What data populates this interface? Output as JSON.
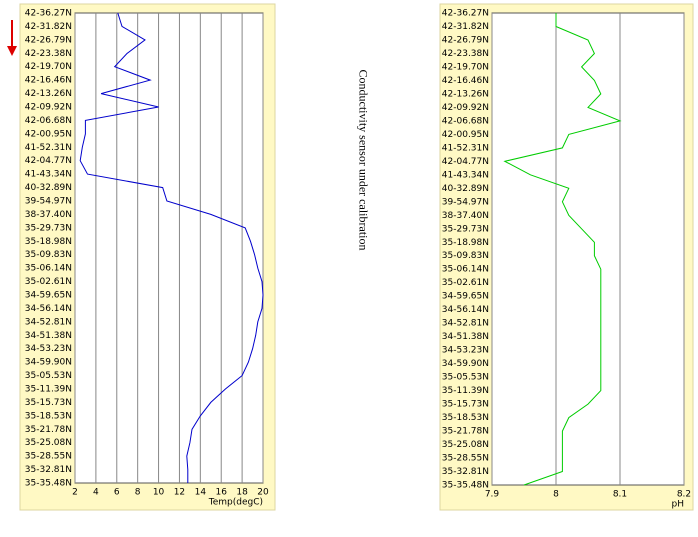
{
  "note": "Conductivity sensor under calibration",
  "chart_data": [
    {
      "type": "line",
      "categories": [
        "42-36.27N",
        "42-31.82N",
        "42-26.79N",
        "42-23.38N",
        "42-19.70N",
        "42-16.46N",
        "42-13.26N",
        "42-09.92N",
        "42-06.68N",
        "42-00.95N",
        "41-52.31N",
        "42-04.77N",
        "41-43.34N",
        "40-32.89N",
        "39-54.97N",
        "38-37.40N",
        "35-29.73N",
        "35-18.98N",
        "35-09.83N",
        "35-06.14N",
        "35-02.61N",
        "34-59.65N",
        "34-56.14N",
        "34-52.81N",
        "34-51.38N",
        "34-53.23N",
        "34-59.90N",
        "35-05.53N",
        "35-11.39N",
        "35-15.73N",
        "35-18.53N",
        "35-21.78N",
        "35-25.08N",
        "35-28.55N",
        "35-32.81N",
        "35-35.48N"
      ],
      "series": [
        {
          "name": "Temp",
          "color": "#0000cc",
          "values": [
            6.1,
            6.5,
            8.7,
            7,
            5.8,
            9.2,
            4.5,
            10,
            3,
            3,
            2.7,
            2.5,
            3.2,
            10.4,
            10.8,
            15,
            18.3,
            18.8,
            19.2,
            19.5,
            19.9,
            20,
            19.9,
            19.5,
            19.3,
            19,
            18.6,
            18,
            16.4,
            15,
            14,
            13.2,
            13,
            12.7,
            12.8,
            12.8
          ]
        }
      ],
      "xlabel": "Temp(degC)",
      "xlim": [
        2,
        20
      ],
      "xticks": [
        2,
        4,
        6,
        8,
        10,
        12,
        14,
        16,
        18,
        20
      ],
      "grid": true
    },
    {
      "type": "line",
      "categories": [
        "42-36.27N",
        "42-31.82N",
        "42-26.79N",
        "42-23.38N",
        "42-19.70N",
        "42-16.46N",
        "42-13.26N",
        "42-09.92N",
        "42-06.68N",
        "42-00.95N",
        "41-52.31N",
        "42-04.77N",
        "41-43.34N",
        "40-32.89N",
        "39-54.97N",
        "38-37.40N",
        "35-29.73N",
        "35-18.98N",
        "35-09.83N",
        "35-06.14N",
        "35-02.61N",
        "34-59.65N",
        "34-56.14N",
        "34-52.81N",
        "34-51.38N",
        "34-53.23N",
        "34-59.90N",
        "35-05.53N",
        "35-11.39N",
        "35-15.73N",
        "35-18.53N",
        "35-21.78N",
        "35-25.08N",
        "35-28.55N",
        "35-32.81N",
        "35-35.48N"
      ],
      "series": [
        {
          "name": "pH",
          "color": "#00cc00",
          "values": [
            8,
            8,
            8.05,
            8.06,
            8.04,
            8.06,
            8.07,
            8.05,
            8.1,
            8.02,
            8.01,
            7.92,
            7.96,
            8.02,
            8.01,
            8.02,
            8.04,
            8.06,
            8.06,
            8.07,
            8.07,
            8.07,
            8.07,
            8.07,
            8.07,
            8.07,
            8.07,
            8.07,
            8.07,
            8.05,
            8.02,
            8.01,
            8.01,
            8.01,
            8.01,
            7.95
          ]
        }
      ],
      "xlabel": "pH",
      "xlim": [
        7.9,
        8.2
      ],
      "xticks": [
        7.9,
        8,
        8.1,
        8.2
      ],
      "grid": true
    }
  ]
}
